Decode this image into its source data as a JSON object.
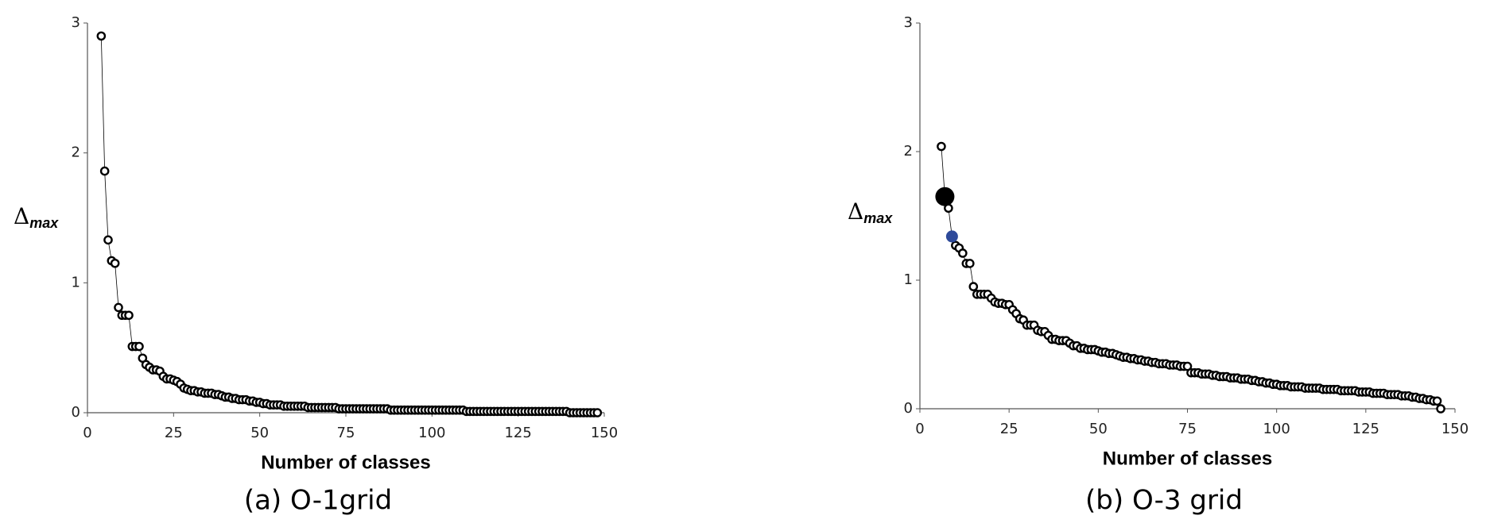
{
  "chart_data": [
    {
      "type": "scatter-line",
      "caption": "(a) O-1grid",
      "xlabel": "Number of classes",
      "ylabel": "Δ",
      "ylabel_sub": "max",
      "xlim": [
        0,
        150
      ],
      "xticks": [
        0,
        25,
        50,
        75,
        100,
        125,
        150
      ],
      "ylim": [
        0,
        3
      ],
      "yticks": [
        0,
        1,
        2,
        3
      ],
      "series": [
        {
          "color": "#000000",
          "x": [
            4,
            5,
            6,
            7,
            8,
            9,
            10,
            11,
            12,
            13,
            14,
            15,
            16,
            17,
            18,
            19,
            20,
            21,
            22,
            23,
            24,
            25,
            26,
            27,
            28,
            29,
            30,
            31,
            32,
            33,
            34,
            35,
            36,
            37,
            38,
            39,
            40,
            41,
            42,
            43,
            44,
            45,
            46,
            47,
            48,
            49,
            50,
            51,
            52,
            53,
            54,
            55,
            56,
            57,
            58,
            59,
            60,
            61,
            62,
            63,
            64,
            65,
            66,
            67,
            68,
            69,
            70,
            71,
            72,
            73,
            74,
            75,
            76,
            77,
            78,
            79,
            80,
            81,
            82,
            83,
            84,
            85,
            86,
            87,
            88,
            89,
            90,
            91,
            92,
            93,
            94,
            95,
            96,
            97,
            98,
            99,
            100,
            101,
            102,
            103,
            104,
            105,
            106,
            107,
            108,
            109,
            110,
            111,
            112,
            113,
            114,
            115,
            116,
            117,
            118,
            119,
            120,
            121,
            122,
            123,
            124,
            125,
            126,
            127,
            128,
            129,
            130,
            131,
            132,
            133,
            134,
            135,
            136,
            137,
            138,
            139,
            140,
            141,
            142,
            143,
            144,
            145,
            146,
            147,
            148
          ],
          "values": [
            2.9,
            1.86,
            1.33,
            1.17,
            1.15,
            0.81,
            0.75,
            0.75,
            0.75,
            0.51,
            0.51,
            0.51,
            0.42,
            0.37,
            0.35,
            0.33,
            0.33,
            0.32,
            0.28,
            0.26,
            0.26,
            0.25,
            0.24,
            0.22,
            0.19,
            0.18,
            0.17,
            0.17,
            0.16,
            0.16,
            0.15,
            0.15,
            0.15,
            0.14,
            0.14,
            0.13,
            0.12,
            0.12,
            0.11,
            0.11,
            0.1,
            0.1,
            0.1,
            0.09,
            0.09,
            0.08,
            0.08,
            0.07,
            0.07,
            0.06,
            0.06,
            0.06,
            0.06,
            0.05,
            0.05,
            0.05,
            0.05,
            0.05,
            0.05,
            0.05,
            0.04,
            0.04,
            0.04,
            0.04,
            0.04,
            0.04,
            0.04,
            0.04,
            0.04,
            0.03,
            0.03,
            0.03,
            0.03,
            0.03,
            0.03,
            0.03,
            0.03,
            0.03,
            0.03,
            0.03,
            0.03,
            0.03,
            0.03,
            0.03,
            0.02,
            0.02,
            0.02,
            0.02,
            0.02,
            0.02,
            0.02,
            0.02,
            0.02,
            0.02,
            0.02,
            0.02,
            0.02,
            0.02,
            0.02,
            0.02,
            0.02,
            0.02,
            0.02,
            0.02,
            0.02,
            0.02,
            0.01,
            0.01,
            0.01,
            0.01,
            0.01,
            0.01,
            0.01,
            0.01,
            0.01,
            0.01,
            0.01,
            0.01,
            0.01,
            0.01,
            0.01,
            0.01,
            0.01,
            0.01,
            0.01,
            0.01,
            0.01,
            0.01,
            0.01,
            0.01,
            0.01,
            0.01,
            0.01,
            0.01,
            0.01,
            0.01,
            0,
            0,
            0,
            0,
            0,
            0,
            0,
            0,
            0
          ]
        }
      ],
      "markers": []
    },
    {
      "type": "scatter-line",
      "caption": "(b) O-3 grid",
      "xlabel": "Number of classes",
      "ylabel": "Δ",
      "ylabel_sub": "max",
      "xlim": [
        0,
        150
      ],
      "xticks": [
        0,
        25,
        50,
        75,
        100,
        125,
        150
      ],
      "ylim": [
        0,
        3
      ],
      "yticks": [
        0,
        1,
        2,
        3
      ],
      "series": [
        {
          "color": "#000000",
          "x": [
            6,
            7,
            8,
            9,
            10,
            11,
            12,
            13,
            14,
            15,
            16,
            17,
            18,
            19,
            20,
            21,
            22,
            23,
            24,
            25,
            26,
            27,
            28,
            29,
            30,
            31,
            32,
            33,
            34,
            35,
            36,
            37,
            38,
            39,
            40,
            41,
            42,
            43,
            44,
            45,
            46,
            47,
            48,
            49,
            50,
            51,
            52,
            53,
            54,
            55,
            56,
            57,
            58,
            59,
            60,
            61,
            62,
            63,
            64,
            65,
            66,
            67,
            68,
            69,
            70,
            71,
            72,
            73,
            74,
            75,
            76,
            77,
            78,
            79,
            80,
            81,
            82,
            83,
            84,
            85,
            86,
            87,
            88,
            89,
            90,
            91,
            92,
            93,
            94,
            95,
            96,
            97,
            98,
            99,
            100,
            101,
            102,
            103,
            104,
            105,
            106,
            107,
            108,
            109,
            110,
            111,
            112,
            113,
            114,
            115,
            116,
            117,
            118,
            119,
            120,
            121,
            122,
            123,
            124,
            125,
            126,
            127,
            128,
            129,
            130,
            131,
            132,
            133,
            134,
            135,
            136,
            137,
            138,
            139,
            140,
            141,
            142,
            143,
            144,
            145,
            146
          ],
          "values": [
            2.04,
            1.65,
            1.56,
            1.34,
            1.27,
            1.25,
            1.21,
            1.13,
            1.13,
            0.95,
            0.89,
            0.89,
            0.89,
            0.89,
            0.86,
            0.83,
            0.82,
            0.82,
            0.81,
            0.81,
            0.77,
            0.74,
            0.7,
            0.69,
            0.65,
            0.65,
            0.65,
            0.61,
            0.6,
            0.6,
            0.57,
            0.54,
            0.54,
            0.53,
            0.53,
            0.53,
            0.51,
            0.49,
            0.49,
            0.47,
            0.47,
            0.46,
            0.46,
            0.46,
            0.45,
            0.44,
            0.44,
            0.43,
            0.43,
            0.42,
            0.41,
            0.4,
            0.4,
            0.39,
            0.39,
            0.38,
            0.38,
            0.37,
            0.37,
            0.36,
            0.36,
            0.35,
            0.35,
            0.35,
            0.34,
            0.34,
            0.34,
            0.33,
            0.33,
            0.33,
            0.28,
            0.28,
            0.28,
            0.27,
            0.27,
            0.27,
            0.26,
            0.26,
            0.25,
            0.25,
            0.25,
            0.24,
            0.24,
            0.24,
            0.23,
            0.23,
            0.23,
            0.22,
            0.22,
            0.21,
            0.21,
            0.2,
            0.2,
            0.19,
            0.19,
            0.18,
            0.18,
            0.18,
            0.17,
            0.17,
            0.17,
            0.17,
            0.16,
            0.16,
            0.16,
            0.16,
            0.16,
            0.15,
            0.15,
            0.15,
            0.15,
            0.15,
            0.14,
            0.14,
            0.14,
            0.14,
            0.14,
            0.13,
            0.13,
            0.13,
            0.13,
            0.12,
            0.12,
            0.12,
            0.12,
            0.11,
            0.11,
            0.11,
            0.11,
            0.1,
            0.1,
            0.1,
            0.09,
            0.09,
            0.08,
            0.08,
            0.07,
            0.07,
            0.06,
            0.06,
            0
          ]
        }
      ],
      "markers": [
        {
          "x": 7,
          "y": 1.65,
          "color": "#000000",
          "size": 24
        },
        {
          "x": 9,
          "y": 1.34,
          "color": "#2e4a9a",
          "size": 15
        }
      ]
    }
  ]
}
